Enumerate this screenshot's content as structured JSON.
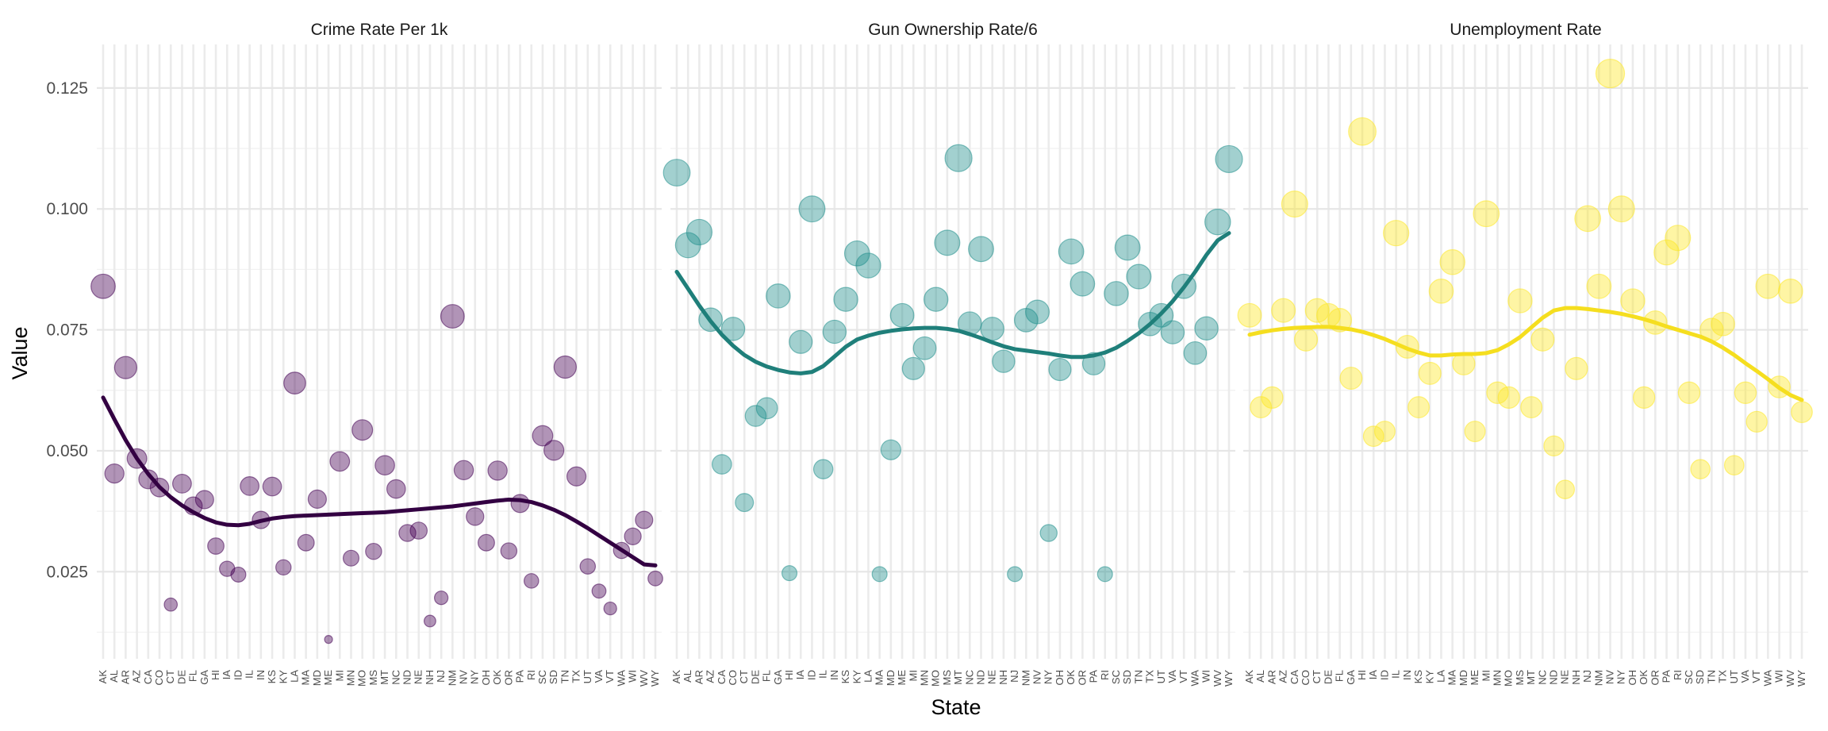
{
  "chart_data": {
    "type": "scatter",
    "xlabel": "State",
    "ylabel": "Value",
    "ylim": [
      0.007,
      0.134
    ],
    "yticks": [
      0.025,
      0.05,
      0.075,
      0.1,
      0.125
    ],
    "ytick_labels": [
      "0.025",
      "0.050",
      "0.075",
      "0.100",
      "0.125"
    ],
    "grid": true,
    "legend": "none",
    "point_size_encodes": "value",
    "smooth_line": true,
    "categories": [
      "AK",
      "AL",
      "AR",
      "AZ",
      "CA",
      "CO",
      "CT",
      "DE",
      "FL",
      "GA",
      "HI",
      "IA",
      "ID",
      "IL",
      "IN",
      "KS",
      "KY",
      "LA",
      "MA",
      "MD",
      "ME",
      "MI",
      "MN",
      "MO",
      "MS",
      "MT",
      "NC",
      "ND",
      "NE",
      "NH",
      "NJ",
      "NM",
      "NV",
      "NY",
      "OH",
      "OK",
      "OR",
      "PA",
      "RI",
      "SC",
      "SD",
      "TN",
      "TX",
      "UT",
      "VA",
      "VT",
      "WA",
      "WI",
      "WV",
      "WY"
    ],
    "series": [
      {
        "name": "Crime Rate Per 1k",
        "color": "#440154",
        "line_color": "#330042",
        "values": [
          0.084,
          0.0453,
          0.0672,
          0.0484,
          0.0441,
          0.0424,
          0.0182,
          0.0432,
          0.0386,
          0.0399,
          0.0303,
          0.0256,
          0.0244,
          0.0427,
          0.0357,
          0.0426,
          0.0259,
          0.064,
          0.031,
          0.04,
          0.011,
          0.0478,
          0.0278,
          0.0543,
          0.0292,
          0.047,
          0.0421,
          0.033,
          0.0335,
          0.0148,
          0.0196,
          0.0778,
          0.046,
          0.0364,
          0.031,
          0.0459,
          0.0293,
          0.0391,
          0.0231,
          0.0531,
          0.0501,
          0.0673,
          0.0447,
          0.0261,
          0.021,
          0.0174,
          0.0294,
          0.0323,
          0.0357,
          0.0236
        ],
        "smooth": [
          0.061,
          0.0565,
          0.0522,
          0.0484,
          0.0452,
          0.0425,
          0.0404,
          0.0387,
          0.0373,
          0.0361,
          0.0352,
          0.0347,
          0.0346,
          0.0349,
          0.0355,
          0.036,
          0.0363,
          0.0365,
          0.0366,
          0.0367,
          0.0368,
          0.0369,
          0.037,
          0.0371,
          0.0372,
          0.0373,
          0.0375,
          0.0377,
          0.0379,
          0.0381,
          0.0383,
          0.0385,
          0.0388,
          0.0391,
          0.0394,
          0.0397,
          0.0399,
          0.0398,
          0.0394,
          0.0387,
          0.0378,
          0.0367,
          0.0354,
          0.034,
          0.0325,
          0.031,
          0.0295,
          0.028,
          0.0265,
          0.0263
        ]
      },
      {
        "name": "Gun Ownership Rate/6",
        "color": "#21908C",
        "line_color": "#1f7f7a",
        "values": [
          0.1075,
          0.0925,
          0.0952,
          0.0771,
          0.0472,
          0.0752,
          0.0393,
          0.0572,
          0.0588,
          0.082,
          0.0247,
          0.0725,
          0.1,
          0.0462,
          0.0746,
          0.0813,
          0.0908,
          0.0883,
          0.0245,
          0.0502,
          0.078,
          0.067,
          0.0712,
          0.0813,
          0.093,
          0.1105,
          0.0763,
          0.0917,
          0.0752,
          0.0685,
          0.0245,
          0.077,
          0.0787,
          0.033,
          0.0668,
          0.0912,
          0.0845,
          0.068,
          0.0245,
          0.0825,
          0.092,
          0.086,
          0.0762,
          0.078,
          0.0745,
          0.084,
          0.0702,
          0.0753,
          0.0973,
          0.1103
        ],
        "smooth": [
          0.087,
          0.0835,
          0.08,
          0.0768,
          0.074,
          0.0717,
          0.0698,
          0.0684,
          0.0674,
          0.0667,
          0.0662,
          0.066,
          0.0663,
          0.0675,
          0.0695,
          0.0715,
          0.073,
          0.0738,
          0.0744,
          0.0748,
          0.0751,
          0.0753,
          0.0754,
          0.0754,
          0.0752,
          0.0748,
          0.0741,
          0.0733,
          0.0724,
          0.0716,
          0.071,
          0.0707,
          0.0704,
          0.0701,
          0.0697,
          0.0694,
          0.0694,
          0.0697,
          0.0703,
          0.0713,
          0.0727,
          0.0743,
          0.0762,
          0.0784,
          0.0809,
          0.0838,
          0.087,
          0.0905,
          0.0935,
          0.095
        ]
      },
      {
        "name": "Unemployment Rate",
        "color": "#FDE725",
        "line_color": "#f5de1f",
        "values": [
          0.078,
          0.059,
          0.061,
          0.079,
          0.101,
          0.073,
          0.079,
          0.078,
          0.077,
          0.065,
          0.116,
          0.053,
          0.054,
          0.095,
          0.0715,
          0.059,
          0.066,
          0.083,
          0.089,
          0.068,
          0.054,
          0.099,
          0.062,
          0.061,
          0.081,
          0.059,
          0.073,
          0.051,
          0.042,
          0.067,
          0.098,
          0.084,
          0.128,
          0.1,
          0.081,
          0.061,
          0.0765,
          0.091,
          0.094,
          0.062,
          0.0462,
          0.075,
          0.0762,
          0.047,
          0.062,
          0.056,
          0.084,
          0.0632,
          0.083,
          0.058
        ],
        "smooth": [
          0.074,
          0.0745,
          0.0749,
          0.0752,
          0.0754,
          0.0755,
          0.0756,
          0.0756,
          0.0754,
          0.0751,
          0.0746,
          0.0739,
          0.0731,
          0.0721,
          0.0711,
          0.0703,
          0.0697,
          0.0697,
          0.0699,
          0.07,
          0.07,
          0.0702,
          0.0708,
          0.072,
          0.0735,
          0.0755,
          0.0775,
          0.079,
          0.0795,
          0.0795,
          0.0793,
          0.079,
          0.0787,
          0.0783,
          0.0778,
          0.0772,
          0.0765,
          0.0757,
          0.075,
          0.0743,
          0.0736,
          0.0726,
          0.0713,
          0.0698,
          0.0681,
          0.0665,
          0.0648,
          0.063,
          0.0615,
          0.0605
        ]
      }
    ]
  }
}
